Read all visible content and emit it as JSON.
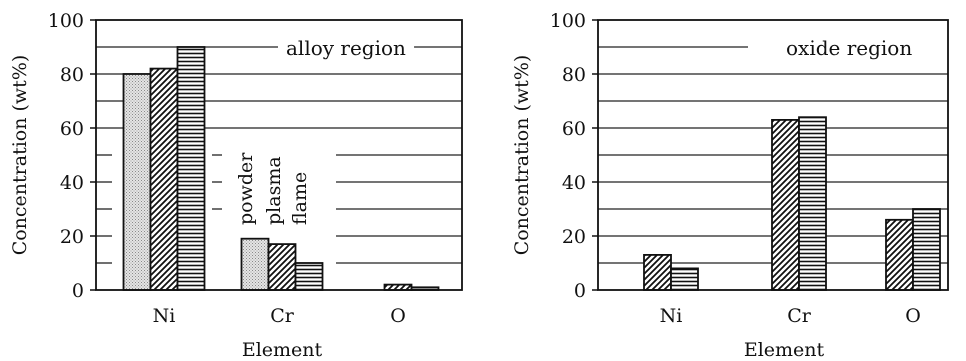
{
  "chart_data": [
    {
      "type": "bar",
      "categories": [
        "Ni",
        "Cr",
        "O"
      ],
      "series": [
        {
          "name": "powder",
          "values": [
            80,
            19,
            null
          ]
        },
        {
          "name": "plasma",
          "values": [
            82,
            17,
            2
          ]
        },
        {
          "name": "flame",
          "values": [
            90,
            10,
            1
          ]
        }
      ],
      "xlabel": "Element",
      "ylabel": "Concentration (wt%)",
      "ylim": [
        0,
        100
      ],
      "yticks": [
        "0",
        "20",
        "40",
        "60",
        "80",
        "100"
      ],
      "annotation": "alloy region",
      "grid": true,
      "legend": "inside, above Cr bars"
    },
    {
      "type": "bar",
      "categories": [
        "Ni",
        "Cr",
        "O"
      ],
      "series": [
        {
          "name": "plasma",
          "values": [
            13,
            63,
            26
          ]
        },
        {
          "name": "flame",
          "values": [
            8,
            64,
            30
          ]
        }
      ],
      "xlabel": "Element",
      "ylabel": "Concentration (wt%)",
      "ylim": [
        0,
        100
      ],
      "yticks": [
        "0",
        "20",
        "40",
        "60",
        "80",
        "100"
      ],
      "annotation": "oxide region",
      "grid": true
    }
  ]
}
